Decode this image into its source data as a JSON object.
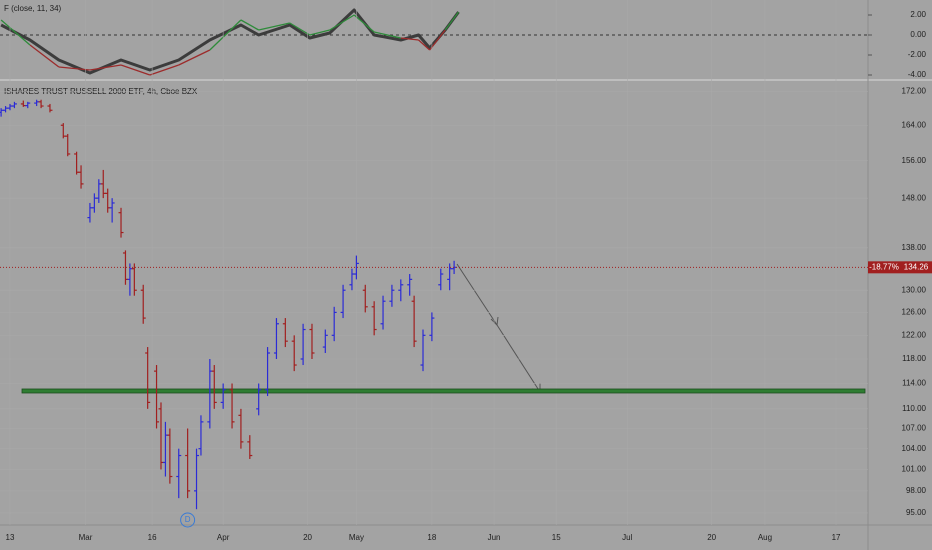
{
  "chart_data": [
    {
      "type": "line",
      "title": "F (close, 11, 34)",
      "xlim": [
        -2.25,
        193.2
      ],
      "ylim": [
        -4.3,
        3.3
      ],
      "yticks": [
        {
          "value": 2,
          "label": "2.00"
        },
        {
          "value": 0,
          "label": "0.00"
        },
        {
          "value": -2,
          "label": "-2.00"
        },
        {
          "value": -4,
          "label": "-4.00"
        }
      ],
      "zero_line": 0,
      "x": [
        -2,
        4.5,
        11,
        18,
        25,
        31.5,
        38,
        45,
        52,
        56,
        63,
        67.5,
        72,
        77.5,
        82,
        88,
        92,
        94.5,
        98,
        101
      ],
      "series": [
        {
          "color": "#3c3c3c",
          "values": [
            1.0,
            -0.5,
            -2.5,
            -3.8,
            -2.5,
            -3.5,
            -2.5,
            -0.5,
            1.0,
            0.0,
            1.0,
            -0.3,
            0.2,
            2.5,
            0.0,
            -0.5,
            0.0,
            -1.3,
            0.5,
            2.3
          ]
        },
        {
          "color": "#2e8b3a",
          "below_color": "#9c2b2b",
          "values": [
            1.5,
            -1.0,
            -3.2,
            -3.5,
            -3.0,
            -4.0,
            -3.0,
            -1.5,
            1.5,
            0.5,
            1.2,
            0.0,
            0.5,
            2.0,
            0.3,
            -0.3,
            -0.5,
            -1.5,
            0.5,
            2.3
          ]
        }
      ]
    },
    {
      "type": "ohlc",
      "title": "ISHARES TRUST RUSSELL 2000 ETF, 4h, Cboe BZX",
      "log_scale": true,
      "grid": true,
      "xlim": [
        -2.25,
        193.2
      ],
      "ylim": [
        93.4,
        174.3
      ],
      "xticks": [
        {
          "value": 0,
          "label": "13"
        },
        {
          "value": 17,
          "label": "Mar"
        },
        {
          "value": 32,
          "label": "16"
        },
        {
          "value": 48,
          "label": "Apr"
        },
        {
          "value": 67,
          "label": "20"
        },
        {
          "value": 78,
          "label": "May"
        },
        {
          "value": 95,
          "label": "18"
        },
        {
          "value": 109,
          "label": "Jun"
        },
        {
          "value": 123,
          "label": "15"
        },
        {
          "value": 139,
          "label": "Jul"
        },
        {
          "value": 158,
          "label": "20"
        },
        {
          "value": 170,
          "label": "Aug"
        },
        {
          "value": 186,
          "label": "17"
        }
      ],
      "yticks": [
        {
          "value": 172,
          "label": "172.00"
        },
        {
          "value": 164,
          "label": "164.00"
        },
        {
          "value": 156,
          "label": "156.00"
        },
        {
          "value": 148,
          "label": "148.00"
        },
        {
          "value": 138,
          "label": "138.00"
        },
        {
          "value": 130,
          "label": "130.00"
        },
        {
          "value": 126,
          "label": "126.00"
        },
        {
          "value": 122,
          "label": "122.00"
        },
        {
          "value": 118,
          "label": "118.00"
        },
        {
          "value": 114,
          "label": "114.00"
        },
        {
          "value": 110,
          "label": "110.00"
        },
        {
          "value": 107,
          "label": "107.00"
        },
        {
          "value": 104,
          "label": "104.00"
        },
        {
          "value": 101,
          "label": "101.00"
        },
        {
          "value": 98,
          "label": "98.00"
        },
        {
          "value": 95,
          "label": "95.00"
        }
      ],
      "up_color": "#2b2bd6",
      "down_color": "#a11f1f",
      "x": [
        -2,
        -1,
        0,
        1,
        3,
        4,
        6,
        7,
        9,
        12,
        13,
        15,
        16,
        18,
        19,
        20,
        21,
        22,
        23,
        25,
        26,
        27,
        28,
        30,
        31,
        33,
        34,
        35,
        36,
        38,
        40,
        42,
        43,
        45,
        46,
        48,
        50,
        52,
        54,
        56,
        58,
        60,
        62,
        64,
        66,
        68,
        71,
        73,
        75,
        77,
        78,
        80,
        82,
        84,
        86,
        88,
        90,
        91,
        93,
        95,
        97,
        99,
        100
      ],
      "open": [
        167,
        167.5,
        168,
        168.5,
        169,
        168.6,
        169.2,
        169.5,
        168.5,
        164,
        161.5,
        157.5,
        153.5,
        144,
        146,
        148,
        151,
        149,
        146,
        145,
        137,
        132,
        134,
        130,
        119,
        116,
        110,
        102,
        106,
        100,
        103,
        98,
        104,
        108,
        116,
        111,
        113,
        109,
        105,
        110,
        113,
        119,
        124,
        121,
        118,
        123,
        120,
        122,
        126,
        131,
        133,
        130,
        127,
        124,
        128,
        130,
        131,
        128,
        117,
        122,
        131,
        132,
        134
      ],
      "high": [
        168,
        168.5,
        169,
        169.5,
        169.8,
        169.5,
        170,
        170,
        169,
        164.5,
        162,
        158,
        155,
        147,
        149,
        152,
        154,
        150,
        148,
        146,
        137.5,
        135,
        135,
        131,
        120,
        117,
        111,
        108,
        107,
        104,
        107,
        104,
        109,
        118,
        117,
        114,
        114,
        110,
        106,
        114,
        120,
        125,
        125,
        122,
        124,
        124,
        123,
        127,
        131,
        134,
        136.5,
        131,
        128,
        129,
        131,
        132,
        133,
        129,
        123,
        126,
        134,
        135,
        135.5
      ],
      "low": [
        166,
        167,
        167.5,
        168,
        168.3,
        168,
        168.5,
        168,
        167,
        161,
        157,
        153,
        150,
        143,
        145,
        147,
        148,
        145,
        143,
        140,
        131,
        129,
        129,
        124,
        110,
        107,
        101,
        100,
        99,
        97,
        97,
        95.5,
        103,
        107,
        110,
        110,
        107,
        104,
        102.5,
        109,
        112,
        118,
        120,
        116,
        117,
        118,
        119,
        121,
        125,
        130,
        132,
        126,
        122,
        123,
        127,
        128,
        129,
        120,
        116,
        121,
        130,
        130,
        133
      ],
      "close": [
        167.5,
        168,
        168.5,
        169,
        168.6,
        169.2,
        169.5,
        168.5,
        167.5,
        161.5,
        157.5,
        153.5,
        151,
        146,
        148,
        151,
        149,
        146,
        147,
        141,
        132,
        134,
        130,
        125,
        111,
        108,
        102,
        106,
        100,
        103,
        98,
        103,
        108,
        116,
        111,
        113,
        108,
        105,
        103,
        113,
        119,
        124,
        121,
        117,
        123,
        119,
        122,
        126,
        130,
        133,
        135,
        127,
        123,
        128,
        130,
        131,
        132,
        121,
        122,
        125,
        133,
        134,
        134.26
      ],
      "last_price": 134.26,
      "change_label": "-18.77%",
      "support_level": 112.8,
      "dividend_marker": "D",
      "dividend_x": 40
    }
  ]
}
